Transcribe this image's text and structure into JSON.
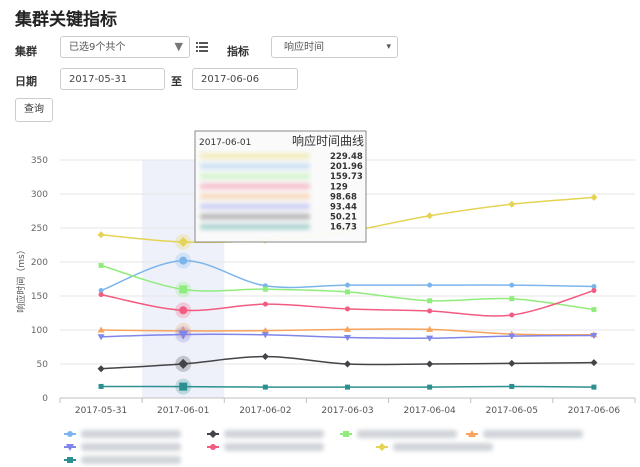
{
  "page": {
    "title": "集群关键指标"
  },
  "filters": {
    "cluster_label": "集群",
    "cluster_value": "已选9个共个",
    "metric_label": "指标",
    "metric_value": "响应时间",
    "date_label": "日期",
    "date_from": "2017-05-31",
    "date_sep": "至",
    "date_to": "2017-06-06",
    "query_button": "查询"
  },
  "chart_data": {
    "type": "line",
    "ylabel": "响应时间（ms）",
    "ylim": [
      0,
      350
    ],
    "yticks": [
      0,
      50,
      100,
      150,
      200,
      250,
      300,
      350
    ],
    "categories": [
      "2017-05-31",
      "2017-06-01",
      "2017-06-02",
      "2017-06-03",
      "2017-06-04",
      "2017-06-05",
      "2017-06-06"
    ],
    "highlight_category": "2017-06-01",
    "series": [
      {
        "color": "#7cb5ec",
        "marker": "circle",
        "values": [
          158,
          201.96,
          165,
          166,
          166,
          166,
          164
        ]
      },
      {
        "color": "#434348",
        "marker": "diamond",
        "values": [
          43,
          50.21,
          61,
          50,
          50,
          51,
          52
        ]
      },
      {
        "color": "#90ed7d",
        "marker": "square",
        "values": [
          195,
          159.73,
          160,
          156,
          143,
          146,
          130
        ]
      },
      {
        "color": "#f7a35c",
        "marker": "triangle",
        "values": [
          100,
          98.68,
          99,
          101,
          101,
          94,
          93
        ]
      },
      {
        "color": "#8085e9",
        "marker": "triangle-down",
        "values": [
          90,
          93.44,
          93,
          89,
          88,
          91,
          92
        ]
      },
      {
        "color": "#f15c80",
        "marker": "circle",
        "values": [
          152,
          129,
          138,
          131,
          128,
          122,
          158
        ]
      },
      {
        "color": "#e4d354",
        "marker": "diamond",
        "values": [
          240,
          229.48,
          232,
          245,
          268,
          285,
          295
        ]
      },
      {
        "color": "#2b908f",
        "marker": "square",
        "values": [
          17,
          16.73,
          16,
          16,
          16,
          17,
          16
        ]
      }
    ],
    "tooltip": {
      "date": "2017-06-01",
      "title": "响应时间曲线",
      "values": [
        "229.48",
        "201.96",
        "159.73",
        "129",
        "98.68",
        "93.44",
        "50.21",
        "16.73"
      ],
      "colors": [
        "#e4d354",
        "#7cb5ec",
        "#90ed7d",
        "#f15c80",
        "#f7a35c",
        "#8085e9",
        "#434348",
        "#2b908f"
      ]
    }
  }
}
